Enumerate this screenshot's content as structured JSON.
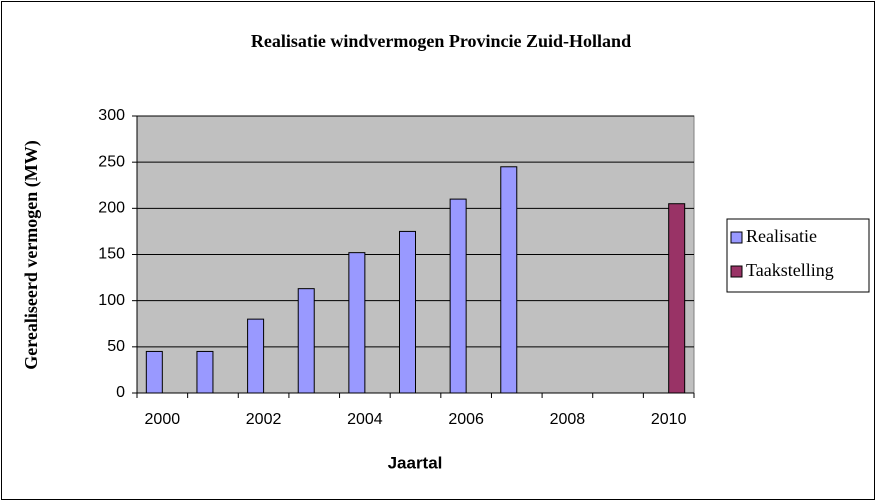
{
  "chart_data": {
    "type": "bar",
    "title": "Realisatie windvermogen Provincie Zuid-Holland",
    "x_label": "Jaartal",
    "y_label": "Gerealiseerd vermogen (MW)",
    "categories": [
      "2000",
      null,
      "2002",
      null,
      "2004",
      null,
      "2006",
      null,
      "2008",
      null,
      "2010"
    ],
    "series": [
      {
        "name": "Realisatie",
        "color": "#9999ff",
        "values": [
          45,
          45,
          80,
          113,
          152,
          175,
          210,
          245,
          null,
          null,
          null
        ]
      },
      {
        "name": "Taakstelling",
        "color": "#993366",
        "values": [
          null,
          null,
          null,
          null,
          null,
          null,
          null,
          null,
          null,
          null,
          205
        ]
      }
    ],
    "ylim": [
      0,
      300
    ],
    "yticks": [
      0,
      50,
      100,
      150,
      200,
      250,
      300
    ],
    "grid": true,
    "legend": "right"
  }
}
